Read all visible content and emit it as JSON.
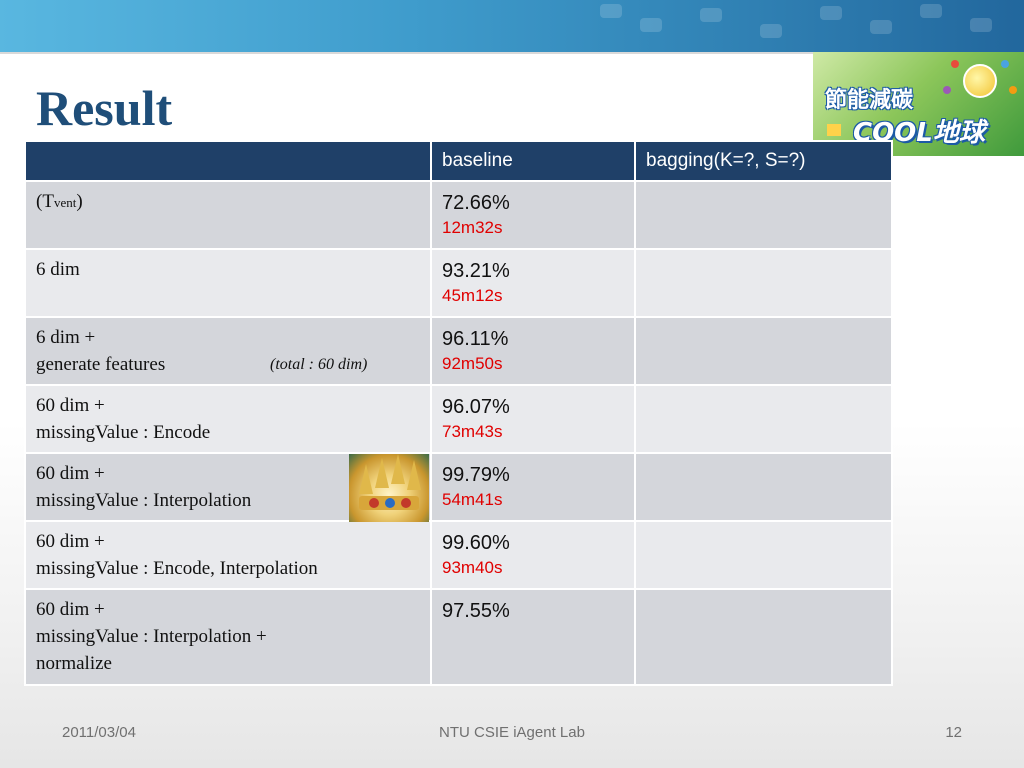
{
  "slide": {
    "title": "Result",
    "logo": {
      "line1": "節能減碳",
      "line2": "COOL地球"
    },
    "footer": {
      "date": "2011/03/04",
      "center": "NTU CSIE iAgent Lab",
      "page": "12"
    }
  },
  "table": {
    "headers": [
      "",
      "baseline",
      "bagging(K=?, S=?)"
    ],
    "row1": {
      "label_main": "(T",
      "label_sub": "vent",
      "label_close": ")",
      "pct": "72.66%",
      "time": "12m32s",
      "bagging": ""
    },
    "row2": {
      "line1": "6 dim",
      "pct": "93.21%",
      "time": "45m12s",
      "bagging": ""
    },
    "row3": {
      "line1": "6 dim +",
      "line2": "generate features",
      "note": "(total : 60 dim)",
      "pct": "96.11%",
      "time": "92m50s",
      "bagging": ""
    },
    "row4": {
      "line1": "60 dim +",
      "line2": "missingValue : Encode",
      "pct": "96.07%",
      "time": "73m43s",
      "bagging": ""
    },
    "row5": {
      "line1": "60 dim +",
      "line2": "missingValue : Interpolation",
      "pct": "99.79%",
      "time": "54m41s",
      "bagging": ""
    },
    "row6": {
      "line1": "60 dim +",
      "line2": "missingValue : Encode, Interpolation",
      "pct": "99.60%",
      "time": "93m40s",
      "bagging": ""
    },
    "row7": {
      "line1": "60 dim +",
      "line2": "missingValue : Interpolation +",
      "line3": "normalize",
      "pct": "97.55%",
      "bagging": ""
    }
  },
  "colors": {
    "header_bg": "#1f4068",
    "title": "#1f4e79",
    "time_text": "#e00000",
    "row_odd": "#d4d6db",
    "row_even": "#e9eaed"
  },
  "icons": {
    "logo": "energy-saving-logo",
    "crown": "crown-image"
  }
}
